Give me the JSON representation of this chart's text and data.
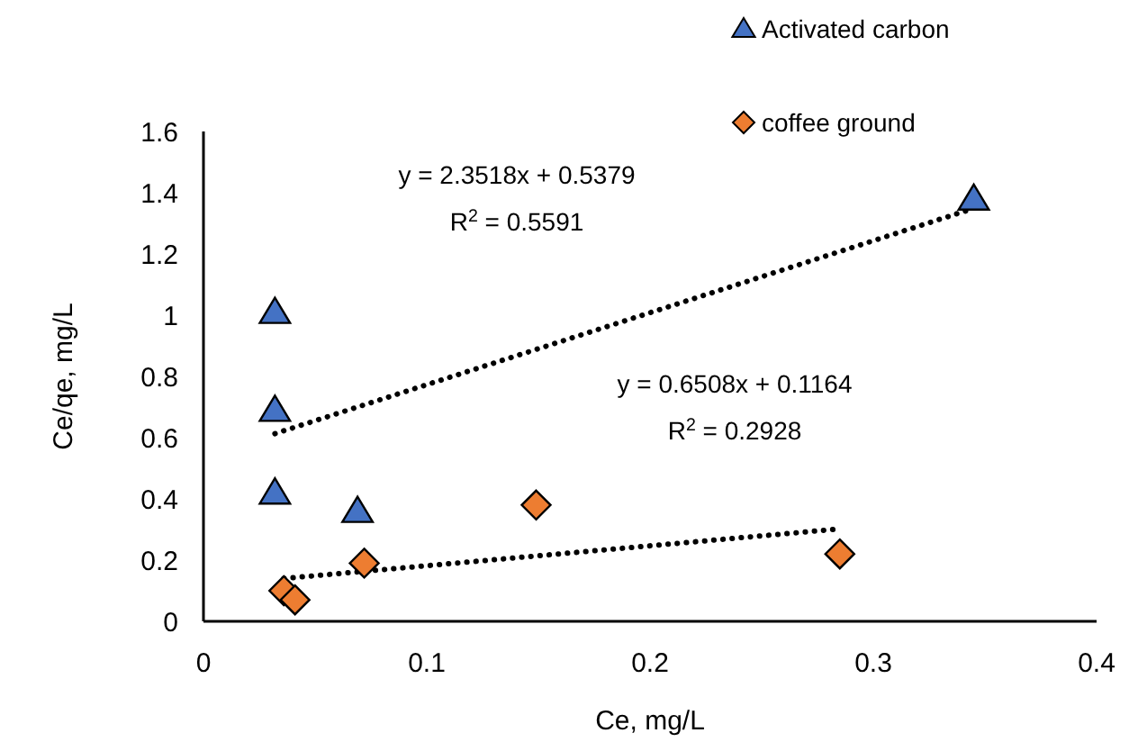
{
  "chart_data": {
    "type": "scatter",
    "xlabel": "Ce, mg/L",
    "ylabel": "Ce/qe, mg/L",
    "xlim": [
      0,
      0.4
    ],
    "xticks": [
      0,
      0.1,
      0.2,
      0.3,
      0.4
    ],
    "ylim": [
      0,
      1.6
    ],
    "yticks": [
      0,
      0.2,
      0.4,
      0.6,
      0.8,
      1,
      1.2,
      1.4,
      1.6
    ],
    "grid": false,
    "legend": "top right",
    "series": [
      {
        "name": "Activated carbon",
        "color": "#4472c4",
        "marker": "triangle",
        "x": [
          0.032,
          0.032,
          0.032,
          0.069,
          0.345
        ],
        "values": [
          1.01,
          0.69,
          0.42,
          0.36,
          1.38
        ]
      },
      {
        "name": "coffee ground",
        "color": "#ed7d31",
        "marker": "diamond",
        "x": [
          0.036,
          0.041,
          0.072,
          0.149,
          0.285
        ],
        "values": [
          0.1,
          0.07,
          0.19,
          0.38,
          0.22
        ]
      },
      {
        "type": "line",
        "color": "#000000",
        "line_style": "dotted",
        "marker": "none",
        "x": [
          0.032,
          0.345
        ],
        "values": [
          0.613,
          1.349
        ]
      },
      {
        "type": "line",
        "color": "#000000",
        "line_style": "dotted",
        "marker": "none",
        "x": [
          0.036,
          0.285
        ],
        "values": [
          0.14,
          0.302
        ]
      }
    ],
    "annotations": [
      "y = 2.3518x + 0.5379",
      "R$^{2}$ = 0.5591",
      "y = 0.6508x + 0.1164",
      "R$^{2}$ = 0.2928"
    ]
  }
}
